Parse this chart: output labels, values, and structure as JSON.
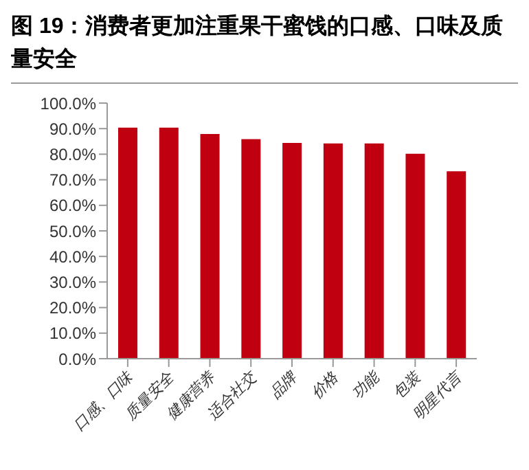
{
  "chart_data": {
    "type": "bar",
    "title": "图 19：消费者更加注重果干蜜饯的口感、口味及质量安全",
    "categories": [
      "口感、口味",
      "质量安全",
      "健康营养",
      "适合社交",
      "品牌",
      "价格",
      "功能",
      "包装",
      "明星代言"
    ],
    "values": [
      90.4,
      90.4,
      87.9,
      85.9,
      84.4,
      84.2,
      84.2,
      80.2,
      73.3
    ],
    "color": "#c00010",
    "ylim": [
      0,
      100
    ],
    "yticks": [
      {
        "value": 0,
        "label": "0.0%"
      },
      {
        "value": 10,
        "label": "10.0%"
      },
      {
        "value": 20,
        "label": "20.0%"
      },
      {
        "value": 30,
        "label": "30.0%"
      },
      {
        "value": 40,
        "label": "40.0%"
      },
      {
        "value": 50,
        "label": "50.0%"
      },
      {
        "value": 60,
        "label": "60.0%"
      },
      {
        "value": 70,
        "label": "70.0%"
      },
      {
        "value": 80,
        "label": "80.0%"
      },
      {
        "value": 90,
        "label": "90.0%"
      },
      {
        "value": 100,
        "label": "100.0%"
      }
    ],
    "grid": false,
    "legend": false
  }
}
